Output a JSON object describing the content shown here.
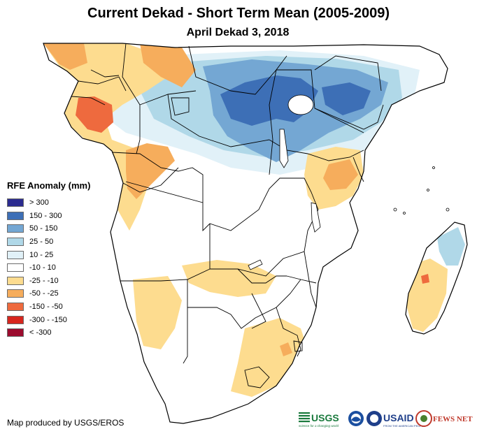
{
  "title": "Current Dekad - Short Term Mean (2005-2009)",
  "subtitle": "April Dekad 3, 2018",
  "legend": {
    "title": "RFE Anomaly (mm)",
    "items": [
      {
        "label": "> 300",
        "color": "#2b2b8f"
      },
      {
        "label": "150 - 300",
        "color": "#3d6fb6"
      },
      {
        "label": "50 - 150",
        "color": "#74a7d3"
      },
      {
        "label": "25 - 50",
        "color": "#b0d8e8"
      },
      {
        "label": "10 - 25",
        "color": "#e1f1f8"
      },
      {
        "label": "-10 - 10",
        "color": "#ffffff"
      },
      {
        "label": "-25 - -10",
        "color": "#fddc8f"
      },
      {
        "label": "-50 - -25",
        "color": "#f6ad5c"
      },
      {
        "label": "-150 - -50",
        "color": "#ee6a3e"
      },
      {
        "label": "-300 - -150",
        "color": "#d7261e"
      },
      {
        "label": "< -300",
        "color": "#9c0b2e"
      }
    ]
  },
  "credit": "Map produced by USGS/EROS",
  "logos": {
    "usgs": "USGS",
    "usgs_tagline": "science for a changing world",
    "usaid": "USAID",
    "usaid_tagline": "FROM THE AMERICAN PEOPLE",
    "fewsnet": "FEWS NET"
  }
}
